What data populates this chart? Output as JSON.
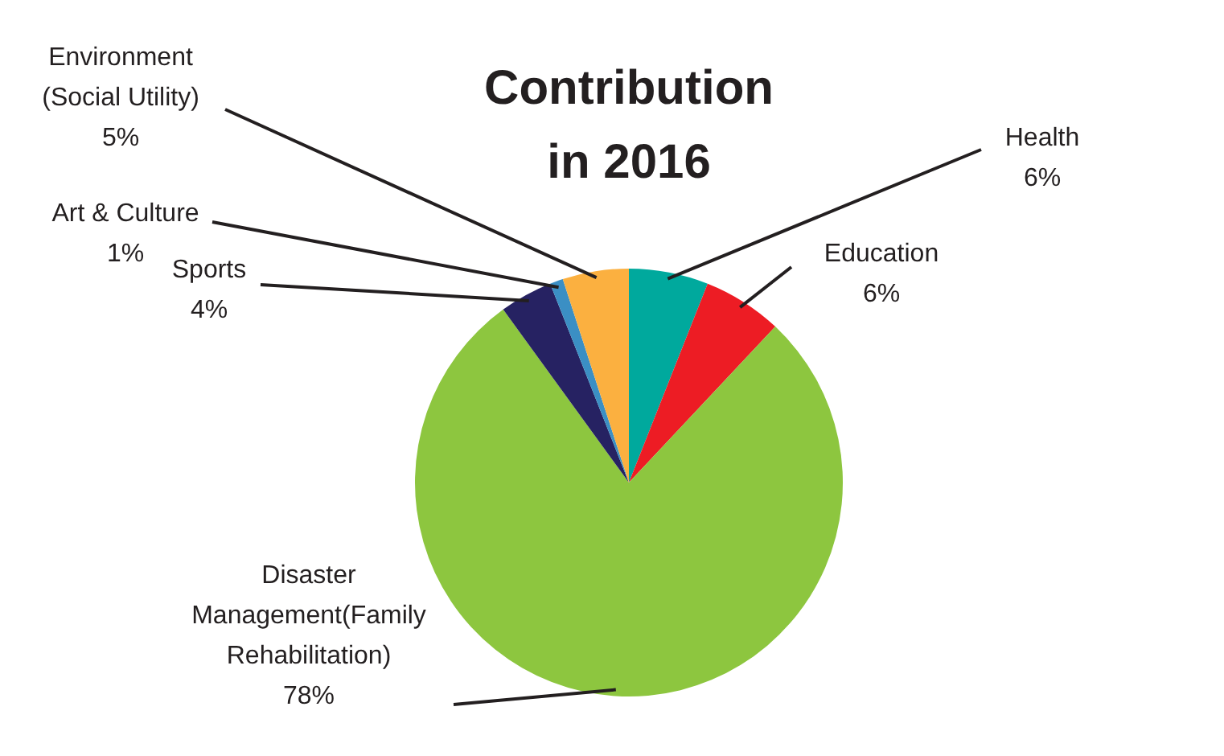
{
  "chart_data": {
    "type": "pie",
    "title": "Contribution in 2016",
    "categories": [
      "Health",
      "Education",
      "Disaster Management(Family Rehabilitation)",
      "Sports",
      "Art & Culture",
      "Environment (Social Utility)"
    ],
    "values": [
      6,
      6,
      78,
      4,
      1,
      5
    ],
    "value_labels": [
      "6%",
      "6%",
      "78%",
      "4%",
      "1%",
      "5%"
    ],
    "colors": [
      "#00a99d",
      "#ed1c24",
      "#8dc63f",
      "#262262",
      "#3b8fc4",
      "#fbb040"
    ],
    "legend": false
  }
}
